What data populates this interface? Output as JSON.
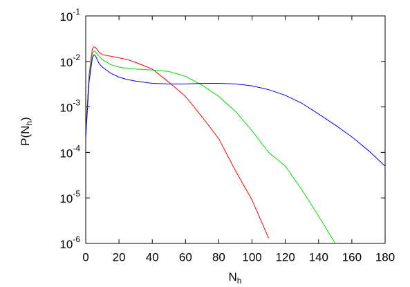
{
  "chart_data": {
    "type": "line",
    "xlabel": "Nh",
    "ylabel": "P(Nh)",
    "x": [
      0,
      2,
      4,
      5,
      6,
      8,
      10,
      15,
      20,
      25,
      30,
      40,
      50,
      60,
      70,
      80,
      90,
      100,
      110,
      120,
      130,
      140,
      150,
      160,
      170,
      180
    ],
    "series": [
      {
        "color": "#ff0000",
        "values": [
          0.0003,
          0.005,
          0.019,
          0.021,
          0.02,
          0.016,
          0.014,
          0.013,
          0.012,
          0.011,
          0.0095,
          0.0068,
          0.0035,
          0.0017,
          0.0006,
          0.0002,
          4e-05,
          9e-06,
          1.3e-06,
          null,
          null,
          null,
          null,
          null,
          null,
          null
        ]
      },
      {
        "color": "#00dd00",
        "values": [
          0.00025,
          0.004,
          0.015,
          0.017,
          0.016,
          0.013,
          0.011,
          0.0085,
          0.0075,
          0.007,
          0.0068,
          0.0065,
          0.006,
          0.0047,
          0.003,
          0.0017,
          0.0008,
          0.0003,
          0.0001,
          5e-05,
          1.5e-05,
          4e-06,
          1e-06,
          null,
          null,
          null
        ]
      },
      {
        "color": "#0000ff",
        "values": [
          0.0002,
          0.0035,
          0.012,
          0.014,
          0.013,
          0.009,
          0.0075,
          0.0055,
          0.0045,
          0.004,
          0.0037,
          0.0033,
          0.0032,
          0.0032,
          0.0033,
          0.0033,
          0.0032,
          0.0029,
          0.0024,
          0.0018,
          0.0012,
          0.0007,
          0.0004,
          0.00022,
          0.00011,
          5e-05
        ]
      }
    ],
    "xlim": [
      0,
      180
    ],
    "xticks": [
      0,
      20,
      40,
      60,
      80,
      100,
      120,
      140,
      160,
      180
    ],
    "ylim": [
      1e-06,
      0.1
    ],
    "ylog": true,
    "yticks": [
      {
        "value": 1e-06,
        "label": "10-6"
      },
      {
        "value": 1e-05,
        "label": "10-5"
      },
      {
        "value": 0.0001,
        "label": "10-4"
      },
      {
        "value": 0.001,
        "label": "10-3"
      },
      {
        "value": 0.01,
        "label": "10-2"
      },
      {
        "value": 0.1,
        "label": "10-1"
      }
    ]
  }
}
